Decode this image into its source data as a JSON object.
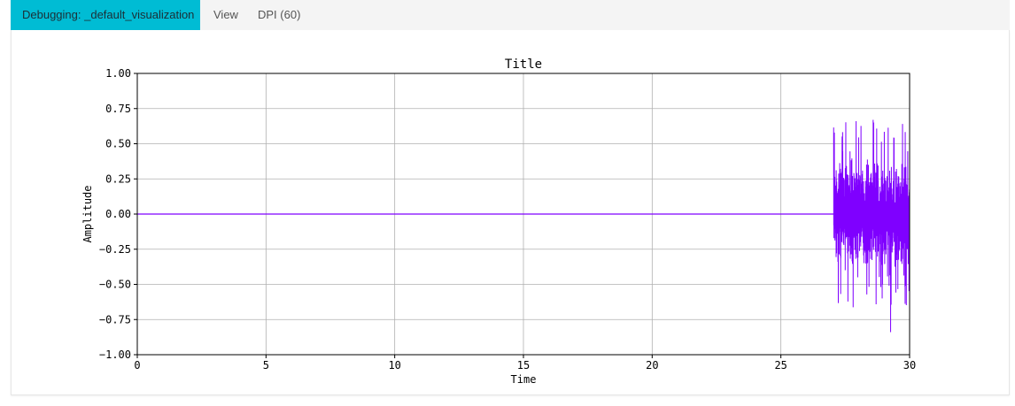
{
  "tabs": [
    {
      "label": "Debugging: _default_visualization",
      "active": true
    },
    {
      "label": "View",
      "active": false
    },
    {
      "label": "DPI (60)",
      "active": false
    }
  ],
  "colors": {
    "tab_active_bg": "#00bcd4",
    "series": "#7f00ff",
    "grid": "#b0b0b0"
  },
  "chart_data": {
    "type": "line",
    "title": "Title",
    "xlabel": "Time",
    "ylabel": "Amplitude",
    "xlim": [
      0,
      30
    ],
    "ylim": [
      -1.0,
      1.0
    ],
    "xticks": [
      0,
      5,
      10,
      15,
      20,
      25,
      30
    ],
    "xtick_labels": [
      "0",
      "5",
      "10",
      "15",
      "20",
      "25",
      "30"
    ],
    "yticks": [
      1.0,
      0.75,
      0.5,
      0.25,
      0.0,
      -0.25,
      -0.5,
      -0.75,
      -1.0
    ],
    "ytick_labels": [
      "1.00",
      "0.75",
      "0.50",
      "0.25",
      "0.00",
      "−0.25",
      "−0.50",
      "−0.75",
      "−1.00"
    ],
    "grid": true,
    "series": [
      {
        "color": "#7f00ff",
        "segments": [
          {
            "x_start": 0,
            "x_end": 27.05,
            "value": 0.0,
            "kind": "constant"
          },
          {
            "x_start": 27.05,
            "x_end": 30.0,
            "kind": "noise",
            "min": -0.84,
            "max": 0.67,
            "typical_max": 0.5,
            "typical_min": -0.52
          }
        ]
      }
    ]
  }
}
